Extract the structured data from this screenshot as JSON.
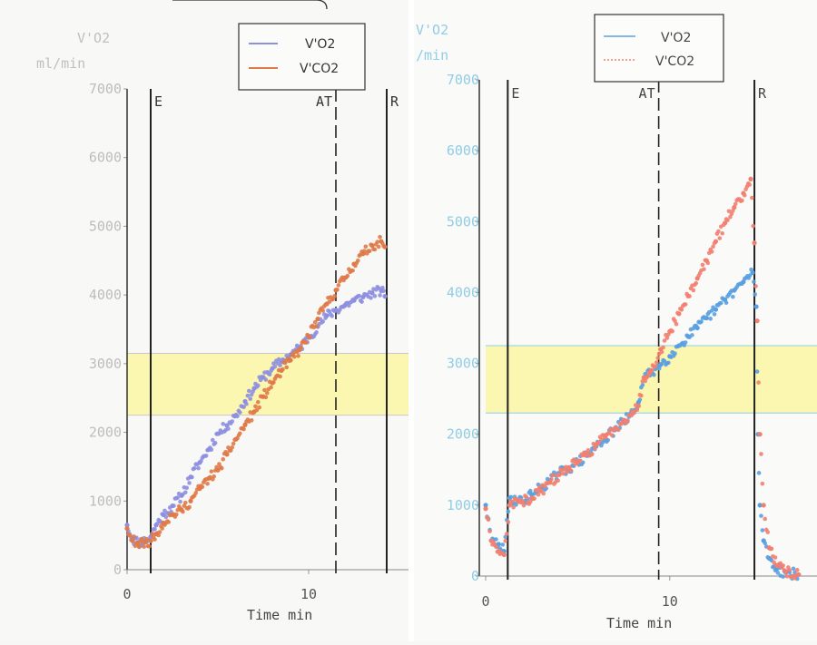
{
  "chart_data": [
    {
      "type": "scatter",
      "ylabel_line1": "V'O2",
      "ylabel_line2": "ml/min",
      "xlabel": "Time   min",
      "xlim": [
        0,
        15.5
      ],
      "ylim": [
        0,
        7000
      ],
      "yticks": [
        "0",
        "1000",
        "2000",
        "3000",
        "4000",
        "5000",
        "6000",
        "7000"
      ],
      "xticks": [
        "0",
        "10"
      ],
      "band": [
        2250,
        3150
      ],
      "markers": [
        {
          "label": "E",
          "x": 1.3,
          "style": "solid"
        },
        {
          "label": "AT",
          "x": 11.5,
          "style": "dashed"
        },
        {
          "label": "R",
          "x": 14.3,
          "style": "solid"
        }
      ],
      "series": [
        {
          "name": "V'O2",
          "color": "#8e8fe0",
          "points": [
            [
              0,
              650
            ],
            [
              0.3,
              450
            ],
            [
              0.6,
              400
            ],
            [
              1.0,
              420
            ],
            [
              1.3,
              480
            ],
            [
              1.6,
              650
            ],
            [
              2,
              800
            ],
            [
              2.5,
              930
            ],
            [
              3,
              1080
            ],
            [
              3.5,
              1350
            ],
            [
              4,
              1560
            ],
            [
              4.5,
              1750
            ],
            [
              5,
              1980
            ],
            [
              5.5,
              2100
            ],
            [
              6,
              2250
            ],
            [
              6.5,
              2450
            ],
            [
              7,
              2640
            ],
            [
              7.5,
              2800
            ],
            [
              8,
              2930
            ],
            [
              8.5,
              3030
            ],
            [
              9,
              3130
            ],
            [
              9.5,
              3230
            ],
            [
              10,
              3380
            ],
            [
              10.5,
              3540
            ],
            [
              11,
              3700
            ],
            [
              11.5,
              3780
            ],
            [
              12,
              3850
            ],
            [
              12.5,
              3920
            ],
            [
              13,
              3970
            ],
            [
              13.5,
              4030
            ],
            [
              14,
              4060
            ],
            [
              14.2,
              3980
            ]
          ]
        },
        {
          "name": "V'CO2",
          "color": "#e07a48",
          "points": [
            [
              0,
              600
            ],
            [
              0.3,
              420
            ],
            [
              0.6,
              380
            ],
            [
              1.0,
              400
            ],
            [
              1.3,
              420
            ],
            [
              1.6,
              520
            ],
            [
              2,
              680
            ],
            [
              2.5,
              800
            ],
            [
              3,
              870
            ],
            [
              3.5,
              1000
            ],
            [
              4,
              1180
            ],
            [
              4.5,
              1330
            ],
            [
              5,
              1450
            ],
            [
              5.5,
              1680
            ],
            [
              6,
              1900
            ],
            [
              6.5,
              2110
            ],
            [
              7,
              2300
            ],
            [
              7.5,
              2520
            ],
            [
              8,
              2720
            ],
            [
              8.5,
              2900
            ],
            [
              9,
              3050
            ],
            [
              9.5,
              3200
            ],
            [
              10,
              3400
            ],
            [
              10.5,
              3650
            ],
            [
              11,
              3870
            ],
            [
              11.5,
              4070
            ],
            [
              12,
              4250
            ],
            [
              12.5,
              4450
            ],
            [
              13,
              4600
            ],
            [
              13.5,
              4720
            ],
            [
              14,
              4780
            ],
            [
              14.2,
              4700
            ]
          ]
        }
      ]
    },
    {
      "type": "scatter",
      "ylabel_line1": "V'O2",
      "ylabel_line2": "/min",
      "xlabel": "Time   min",
      "xlim": [
        0,
        18
      ],
      "ylim": [
        0,
        7000
      ],
      "yticks": [
        "0",
        "1000",
        "2000",
        "3000",
        "4000",
        "5000",
        "6000",
        "7000"
      ],
      "xticks": [
        "0",
        "10"
      ],
      "band": [
        2300,
        3250
      ],
      "markers": [
        {
          "label": "E",
          "x": 1.2,
          "style": "solid"
        },
        {
          "label": "AT",
          "x": 9.4,
          "style": "dashed"
        },
        {
          "label": "R",
          "x": 14.6,
          "style": "solid"
        }
      ],
      "series": [
        {
          "name": "V'O2",
          "color": "#5aa0e0",
          "points": [
            [
              0,
              1000
            ],
            [
              0.3,
              500
            ],
            [
              0.7,
              450
            ],
            [
              1.0,
              350
            ],
            [
              1.3,
              1100
            ],
            [
              2,
              1050
            ],
            [
              2.5,
              1150
            ],
            [
              3,
              1250
            ],
            [
              3.5,
              1350
            ],
            [
              4,
              1450
            ],
            [
              4.5,
              1520
            ],
            [
              5,
              1600
            ],
            [
              5.5,
              1700
            ],
            [
              6,
              1830
            ],
            [
              6.5,
              1940
            ],
            [
              7,
              2060
            ],
            [
              7.5,
              2180
            ],
            [
              8,
              2300
            ],
            [
              8.3,
              2450
            ],
            [
              8.6,
              2800
            ],
            [
              9,
              2870
            ],
            [
              9.5,
              2980
            ],
            [
              10,
              3100
            ],
            [
              10.5,
              3250
            ],
            [
              11,
              3380
            ],
            [
              11.5,
              3500
            ],
            [
              12,
              3640
            ],
            [
              12.5,
              3760
            ],
            [
              13,
              3900
            ],
            [
              13.5,
              4030
            ],
            [
              14,
              4150
            ],
            [
              14.5,
              4280
            ],
            [
              14.7,
              3800
            ],
            [
              14.8,
              2000
            ],
            [
              14.9,
              1000
            ],
            [
              15.1,
              500
            ],
            [
              15.4,
              250
            ],
            [
              15.8,
              100
            ],
            [
              16.3,
              50
            ],
            [
              17,
              20
            ]
          ]
        },
        {
          "name": "V'CO2",
          "color": "#f28070",
          "points": [
            [
              0,
              950
            ],
            [
              0.3,
              500
            ],
            [
              0.7,
              350
            ],
            [
              1.0,
              300
            ],
            [
              1.3,
              1000
            ],
            [
              2,
              1050
            ],
            [
              2.5,
              1100
            ],
            [
              3,
              1200
            ],
            [
              3.5,
              1320
            ],
            [
              4,
              1430
            ],
            [
              4.5,
              1530
            ],
            [
              5,
              1600
            ],
            [
              5.5,
              1720
            ],
            [
              6,
              1850
            ],
            [
              6.5,
              1960
            ],
            [
              7,
              2080
            ],
            [
              7.5,
              2200
            ],
            [
              8,
              2320
            ],
            [
              8.3,
              2400
            ],
            [
              8.6,
              2800
            ],
            [
              9,
              2900
            ],
            [
              9.5,
              3200
            ],
            [
              10,
              3450
            ],
            [
              10.5,
              3700
            ],
            [
              11,
              3950
            ],
            [
              11.5,
              4200
            ],
            [
              12,
              4450
            ],
            [
              12.5,
              4720
            ],
            [
              13,
              4980
            ],
            [
              13.5,
              5200
            ],
            [
              14,
              5400
            ],
            [
              14.4,
              5600
            ],
            [
              14.6,
              4700
            ],
            [
              14.75,
              3600
            ],
            [
              14.9,
              2000
            ],
            [
              15.1,
              1000
            ],
            [
              15.4,
              400
            ],
            [
              15.8,
              150
            ],
            [
              16.3,
              60
            ],
            [
              17,
              20
            ]
          ]
        }
      ]
    }
  ]
}
